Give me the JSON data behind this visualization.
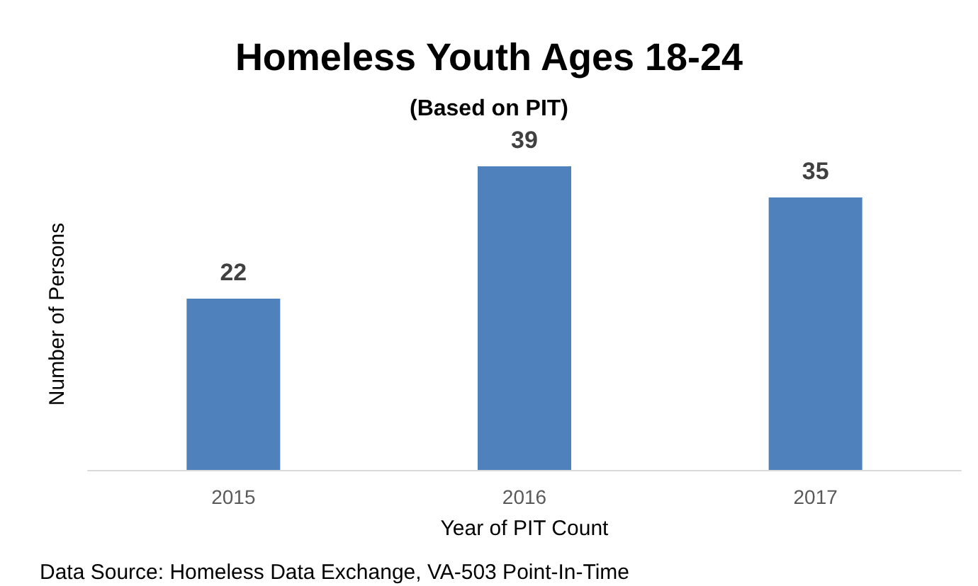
{
  "chart_data": {
    "type": "bar",
    "title": "Homeless Youth Ages 18-24",
    "subtitle": "(Based on PIT)",
    "xlabel": "Year of PIT Count",
    "ylabel": "Number of Persons",
    "categories": [
      "2015",
      "2016",
      "2017"
    ],
    "values": [
      22,
      39,
      35
    ],
    "color": "#4f81bd",
    "data_labels": true,
    "annotations": [
      "Data Source: Homeless Data Exchange, VA-503 Point-In-Time"
    ]
  }
}
